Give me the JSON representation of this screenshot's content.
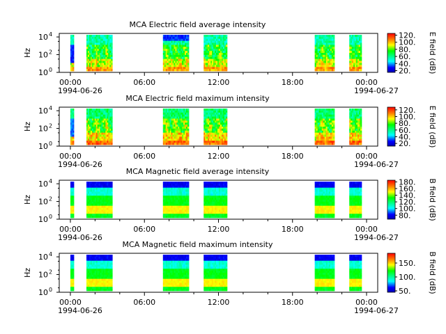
{
  "chart_data": [
    {
      "type": "heatmap",
      "title": "MCA  Electric field average intensity",
      "ylabel": "Hz",
      "y_scale": "log",
      "y_ticks": [
        {
          "exp": 0
        },
        {
          "exp": 2
        },
        {
          "exp": 4
        }
      ],
      "y_tick_base": "10",
      "x_ticks": [
        "00:00",
        "06:00",
        "12:00",
        "18:00",
        "00:00"
      ],
      "x_dates": [
        "1994-06-26",
        "1994-06-27"
      ],
      "colorbar": {
        "label": "E field (dB)",
        "ticks": [
          "20.",
          "40.",
          "60.",
          "80.",
          "100.",
          "120."
        ],
        "range": [
          15,
          125
        ]
      },
      "style": "electric-avg",
      "segments": [
        {
          "start_h": 0.0,
          "end_h": 0.2
        },
        {
          "start_h": 1.3,
          "end_h": 3.4
        },
        {
          "start_h": 7.5,
          "end_h": 9.6
        },
        {
          "start_h": 10.8,
          "end_h": 12.7
        },
        {
          "start_h": 19.8,
          "end_h": 21.4
        },
        {
          "start_h": 22.6,
          "end_h": 23.6
        }
      ]
    },
    {
      "type": "heatmap",
      "title": "MCA  Electric field maximum intensity",
      "ylabel": "Hz",
      "y_scale": "log",
      "y_ticks": [
        {
          "exp": 0
        },
        {
          "exp": 2
        },
        {
          "exp": 4
        }
      ],
      "y_tick_base": "10",
      "x_ticks": [
        "00:00",
        "06:00",
        "12:00",
        "18:00",
        "00:00"
      ],
      "x_dates": [
        "1994-06-26",
        "1994-06-27"
      ],
      "colorbar": {
        "label": "E field (dB)",
        "ticks": [
          "20.",
          "40.",
          "60.",
          "80.",
          "100.",
          "120."
        ],
        "range": [
          12,
          128
        ]
      },
      "style": "electric-max",
      "segments": [
        {
          "start_h": 0.0,
          "end_h": 0.2
        },
        {
          "start_h": 1.3,
          "end_h": 3.4
        },
        {
          "start_h": 7.5,
          "end_h": 9.6
        },
        {
          "start_h": 10.8,
          "end_h": 12.7
        },
        {
          "start_h": 19.8,
          "end_h": 21.4
        },
        {
          "start_h": 22.6,
          "end_h": 23.6
        }
      ]
    },
    {
      "type": "heatmap",
      "title": "MCA  Magnetic field average intensity",
      "ylabel": "Hz",
      "y_scale": "log",
      "y_ticks": [
        {
          "exp": 0
        },
        {
          "exp": 2
        },
        {
          "exp": 4
        }
      ],
      "y_tick_base": "10",
      "x_ticks": [
        "00:00",
        "06:00",
        "12:00",
        "18:00",
        "00:00"
      ],
      "x_dates": [
        "1994-06-26",
        "1994-06-27"
      ],
      "colorbar": {
        "label": "B field (dB)",
        "ticks": [
          "80.",
          "100.",
          "120.",
          "140.",
          "160.",
          "180."
        ],
        "range": [
          68,
          185
        ]
      },
      "style": "magnetic",
      "segments": [
        {
          "start_h": 0.0,
          "end_h": 0.2
        },
        {
          "start_h": 1.3,
          "end_h": 3.4
        },
        {
          "start_h": 7.5,
          "end_h": 9.6
        },
        {
          "start_h": 10.8,
          "end_h": 12.7
        },
        {
          "start_h": 19.8,
          "end_h": 21.4
        },
        {
          "start_h": 22.6,
          "end_h": 23.6
        }
      ]
    },
    {
      "type": "heatmap",
      "title": "MCA  Magnetic field maximum intensity",
      "ylabel": "Hz",
      "y_scale": "log",
      "y_ticks": [
        {
          "exp": 0
        },
        {
          "exp": 2
        },
        {
          "exp": 4
        }
      ],
      "y_tick_base": "10",
      "x_ticks": [
        "00:00",
        "06:00",
        "12:00",
        "18:00",
        "00:00"
      ],
      "x_dates": [
        "1994-06-26",
        "1994-06-27"
      ],
      "colorbar": {
        "label": "B field (dB)",
        "ticks": [
          "50.",
          "100.",
          "150."
        ],
        "range": [
          45,
          185
        ]
      },
      "style": "magnetic",
      "segments": [
        {
          "start_h": 0.0,
          "end_h": 0.2
        },
        {
          "start_h": 1.3,
          "end_h": 3.4
        },
        {
          "start_h": 7.5,
          "end_h": 9.6
        },
        {
          "start_h": 10.8,
          "end_h": 12.7
        },
        {
          "start_h": 19.8,
          "end_h": 21.4
        },
        {
          "start_h": 22.6,
          "end_h": 23.6
        }
      ]
    }
  ]
}
